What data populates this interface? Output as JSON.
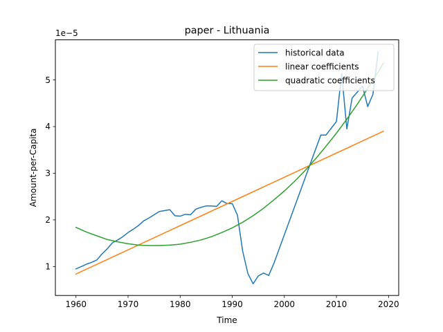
{
  "chart_data": {
    "type": "line",
    "title": "paper - Lithuania",
    "xlabel": "Time",
    "ylabel": "Amount-per-Capita",
    "y_offset_label": "1e−5",
    "xlim": [
      1956.05,
      2021.95
    ],
    "ylim": [
      0.38,
      5.86
    ],
    "x_ticks": [
      1960,
      1970,
      1980,
      1990,
      2000,
      2010,
      2020
    ],
    "y_ticks": [
      1,
      2,
      3,
      4,
      5
    ],
    "legend_position": "top-right",
    "grid": false,
    "series": [
      {
        "name": "historical data",
        "color": "#1f77b4",
        "x": [
          1960,
          1961,
          1962,
          1963,
          1964,
          1965,
          1966,
          1967,
          1968,
          1969,
          1970,
          1971,
          1972,
          1973,
          1974,
          1975,
          1976,
          1977,
          1978,
          1979,
          1980,
          1981,
          1982,
          1983,
          1984,
          1985,
          1986,
          1987,
          1988,
          1989,
          1990,
          1991,
          1992,
          1993,
          1994,
          1995,
          1996,
          1997,
          1998,
          2007,
          2008,
          2010,
          2011,
          2012,
          2013,
          2015,
          2016,
          2017,
          2018
        ],
        "y": [
          0.95,
          1.0,
          1.05,
          1.09,
          1.14,
          1.27,
          1.38,
          1.51,
          1.57,
          1.64,
          1.73,
          1.8,
          1.88,
          1.98,
          2.04,
          2.11,
          2.18,
          2.2,
          2.22,
          2.09,
          2.08,
          2.12,
          2.11,
          2.23,
          2.27,
          2.3,
          2.3,
          2.29,
          2.41,
          2.35,
          2.35,
          2.1,
          1.33,
          0.85,
          0.63,
          0.8,
          0.86,
          0.81,
          1.07,
          3.82,
          3.82,
          4.11,
          5.14,
          3.95,
          4.61,
          4.87,
          4.43,
          4.69,
          5.6
        ]
      },
      {
        "name": "linear coefficients",
        "color": "#ff7f0e",
        "x": [
          1960,
          2019
        ],
        "y": [
          0.84,
          3.9
        ]
      },
      {
        "name": "quadratic coefficients",
        "color": "#2ca02c",
        "x": [
          1960,
          1962,
          1964,
          1966,
          1968,
          1970,
          1972,
          1974,
          1976,
          1978,
          1980,
          1982,
          1984,
          1986,
          1988,
          1990,
          1992,
          1994,
          1996,
          1998,
          2000,
          2002,
          2004,
          2006,
          2008,
          2010,
          2012,
          2014,
          2016,
          2018,
          2019
        ],
        "y": [
          1.84,
          1.74,
          1.66,
          1.58,
          1.53,
          1.49,
          1.46,
          1.45,
          1.45,
          1.46,
          1.48,
          1.52,
          1.57,
          1.64,
          1.73,
          1.83,
          1.95,
          2.09,
          2.25,
          2.43,
          2.62,
          2.83,
          3.06,
          3.31,
          3.58,
          3.86,
          4.16,
          4.48,
          4.82,
          5.17,
          5.36
        ]
      }
    ]
  }
}
